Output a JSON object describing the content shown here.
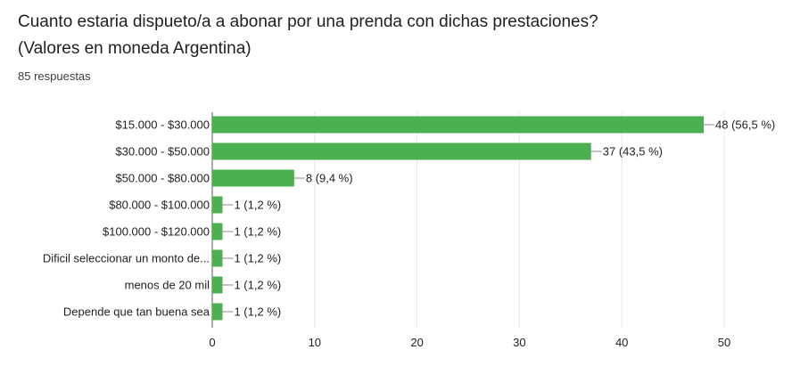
{
  "question": {
    "line1": "Cuanto estaria dispueto/a a abonar por una prenda con dichas prestaciones?",
    "line2": "(Valores en moneda Argentina)"
  },
  "responses_label": "85 respuestas",
  "colors": {
    "bar": "#4caf50",
    "grid": "#e8e8e8",
    "axis": "#555555",
    "text": "#222222"
  },
  "chart_data": {
    "type": "bar",
    "orientation": "horizontal",
    "categories": [
      "$15.000 - $30.000",
      "$30.000 - $50.000",
      "$50.000 - $80.000",
      "$80.000 - $100.000",
      "$100.000 - $120.000",
      "Dificil seleccionar un monto de...",
      "menos de 20 mil",
      "Depende que tan buena sea"
    ],
    "values": [
      48,
      37,
      8,
      1,
      1,
      1,
      1,
      1
    ],
    "data_labels": [
      "48 (56,5 %)",
      "37 (43,5 %)",
      "8 (9,4 %)",
      "1 (1,2 %)",
      "1 (1,2 %)",
      "1 (1,2 %)",
      "1 (1,2 %)",
      "1 (1,2 %)"
    ],
    "xlim": [
      0,
      50
    ],
    "xticks": [
      0,
      10,
      20,
      30,
      40,
      50
    ],
    "grid": true
  }
}
